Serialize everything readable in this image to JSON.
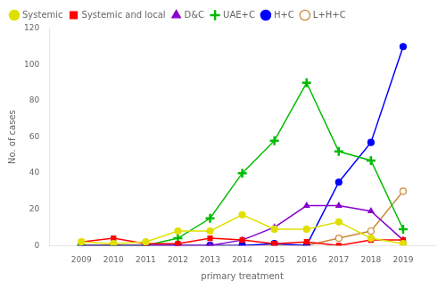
{
  "chart_data": {
    "type": "line",
    "x": [
      2009,
      2010,
      2011,
      2012,
      2013,
      2014,
      2015,
      2016,
      2017,
      2018,
      2019
    ],
    "series": [
      {
        "name": "Systemic",
        "color": "#e0e000",
        "marker": "circle",
        "values": [
          2,
          1,
          2,
          8,
          8,
          17,
          9,
          9,
          13,
          4,
          1
        ]
      },
      {
        "name": "Systemic and local",
        "color": "#ff0000",
        "marker": "square",
        "values": [
          2,
          4,
          1,
          1,
          4,
          3,
          1,
          2,
          0,
          3,
          3
        ]
      },
      {
        "name": "D&C",
        "color": "#8800cc",
        "marker": "triangle",
        "values": [
          0,
          0,
          0,
          0,
          0,
          3,
          10,
          22,
          22,
          19,
          3
        ]
      },
      {
        "name": "UAE+C",
        "color": "#00bb00",
        "marker": "plus",
        "values": [
          0,
          0,
          0,
          4,
          15,
          40,
          58,
          90,
          52,
          47,
          9
        ]
      },
      {
        "name": "H+C",
        "color": "#0000ff",
        "marker": "circle",
        "values": [
          0,
          0,
          0,
          0,
          0,
          0,
          1,
          0,
          35,
          57,
          110
        ]
      },
      {
        "name": "L+H+C",
        "color": "#cc8833",
        "marker": "hollow_circle",
        "values": [
          0,
          0,
          0,
          0,
          0,
          0,
          0,
          0,
          4,
          8,
          30
        ]
      }
    ],
    "x_label": "primary treatment",
    "y_label": "No. of cases",
    "xlim": [
      2008,
      2020
    ],
    "xticks": [
      2009,
      2010,
      2011,
      2012,
      2013,
      2014,
      2015,
      2016,
      2017,
      2018,
      2019
    ],
    "ylim": [
      0,
      120
    ],
    "yticks": [
      0,
      20,
      40,
      60,
      80,
      100,
      120
    ],
    "grid": false,
    "legend": "upper left"
  }
}
